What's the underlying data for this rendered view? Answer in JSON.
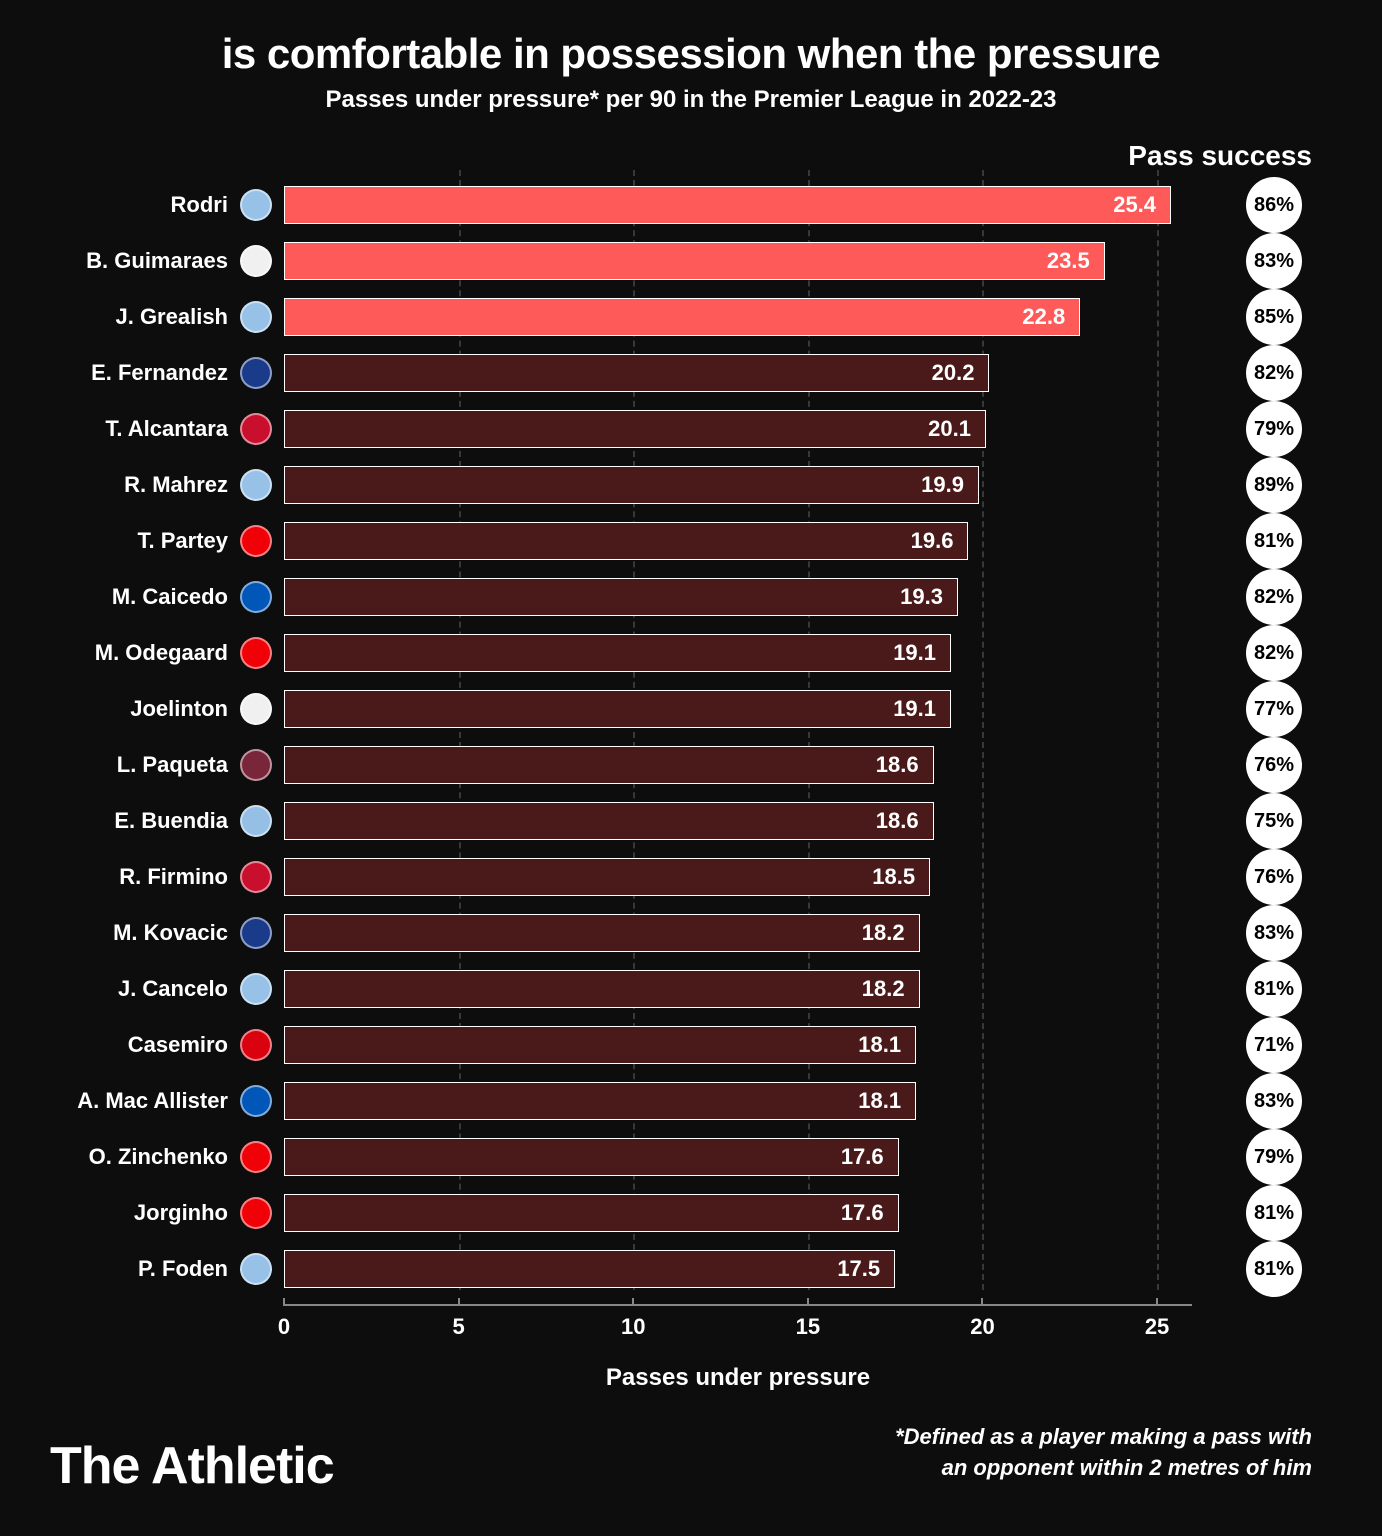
{
  "title": "is comfortable in possession when the pressure",
  "subtitle": "Passes under pressure* per 90 in the Premier League in 2022-23",
  "pass_success_header": "Pass success",
  "x_label": "Passes under pressure",
  "footnote_line1": "*Defined as a player making a pass with",
  "footnote_line2": "an opponent within 2 metres of him",
  "brand": "The Athletic",
  "chart": {
    "type": "bar-horizontal",
    "x_max": 26,
    "x_ticks": [
      0,
      5,
      10,
      15,
      20,
      25
    ],
    "bar_border_color": "#ffffff",
    "highlight_color": "#ff5a5a",
    "normal_color": "#4a1a1a",
    "background": "#0d0d0d",
    "grid_color": "#555555",
    "circle_bg": "#ffffff",
    "circle_text": "#000000",
    "label_fontsize": 22,
    "value_fontsize": 22
  },
  "players": [
    {
      "name": "Rodri",
      "value": 25.4,
      "success": "86%",
      "highlight": true,
      "badge": "#97c1e7"
    },
    {
      "name": "B. Guimaraes",
      "value": 23.5,
      "success": "83%",
      "highlight": true,
      "badge": "#f0f0f0"
    },
    {
      "name": "J. Grealish",
      "value": 22.8,
      "success": "85%",
      "highlight": true,
      "badge": "#97c1e7"
    },
    {
      "name": "E. Fernandez",
      "value": 20.2,
      "success": "82%",
      "highlight": false,
      "badge": "#1a3a8a"
    },
    {
      "name": "T. Alcantara",
      "value": 20.1,
      "success": "79%",
      "highlight": false,
      "badge": "#c8102e"
    },
    {
      "name": "R. Mahrez",
      "value": 19.9,
      "success": "89%",
      "highlight": false,
      "badge": "#97c1e7"
    },
    {
      "name": "T. Partey",
      "value": 19.6,
      "success": "81%",
      "highlight": false,
      "badge": "#ef0107"
    },
    {
      "name": "M. Caicedo",
      "value": 19.3,
      "success": "82%",
      "highlight": false,
      "badge": "#0057b8"
    },
    {
      "name": "M. Odegaard",
      "value": 19.1,
      "success": "82%",
      "highlight": false,
      "badge": "#ef0107"
    },
    {
      "name": "Joelinton",
      "value": 19.1,
      "success": "77%",
      "highlight": false,
      "badge": "#f0f0f0"
    },
    {
      "name": "L. Paqueta",
      "value": 18.6,
      "success": "76%",
      "highlight": false,
      "badge": "#7a263a"
    },
    {
      "name": "E. Buendia",
      "value": 18.6,
      "success": "75%",
      "highlight": false,
      "badge": "#95bfe5"
    },
    {
      "name": "R. Firmino",
      "value": 18.5,
      "success": "76%",
      "highlight": false,
      "badge": "#c8102e"
    },
    {
      "name": "M. Kovacic",
      "value": 18.2,
      "success": "83%",
      "highlight": false,
      "badge": "#1a3a8a"
    },
    {
      "name": "J. Cancelo",
      "value": 18.2,
      "success": "81%",
      "highlight": false,
      "badge": "#97c1e7"
    },
    {
      "name": "Casemiro",
      "value": 18.1,
      "success": "71%",
      "highlight": false,
      "badge": "#da020e"
    },
    {
      "name": "A. Mac Allister",
      "value": 18.1,
      "success": "83%",
      "highlight": false,
      "badge": "#0057b8"
    },
    {
      "name": "O. Zinchenko",
      "value": 17.6,
      "success": "79%",
      "highlight": false,
      "badge": "#ef0107"
    },
    {
      "name": "Jorginho",
      "value": 17.6,
      "success": "81%",
      "highlight": false,
      "badge": "#ef0107"
    },
    {
      "name": "P. Foden",
      "value": 17.5,
      "success": "81%",
      "highlight": false,
      "badge": "#97c1e7"
    }
  ]
}
